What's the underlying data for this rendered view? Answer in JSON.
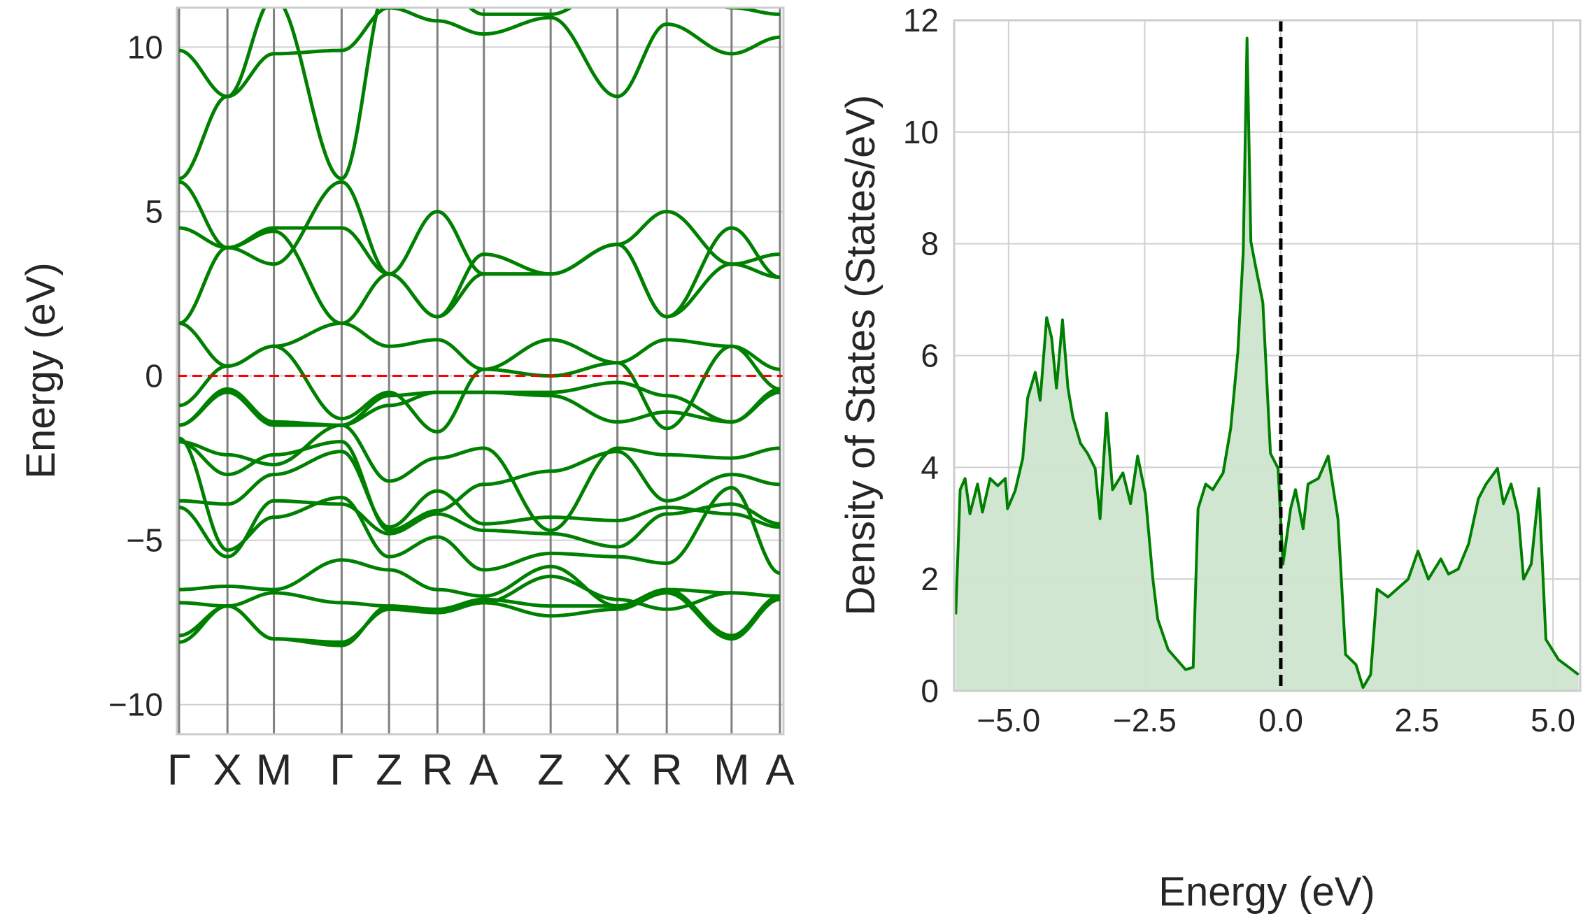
{
  "chart_data": [
    {
      "type": "line",
      "ylabel": "Energy (eV)",
      "xlabel": "",
      "ylim": [
        -10.9,
        11.2
      ],
      "yticks": [
        -10,
        -5,
        0,
        5,
        10
      ],
      "ytick_labels": [
        "−10",
        "−5",
        "0",
        "5",
        "10"
      ],
      "kpoint_labels": [
        "Γ",
        "X",
        "M",
        "Γ",
        "Z",
        "R",
        "A",
        "Z",
        "X",
        "R",
        "M",
        "A"
      ],
      "kpoint_distances": [
        0,
        0.5,
        0.98,
        1.68,
        2.17,
        2.67,
        3.15,
        3.84,
        4.53,
        5.04,
        5.71,
        6.21
      ],
      "fermi_level": 0,
      "fermi_line_color": "#ff0000",
      "line_color": "#008000",
      "grid": true,
      "bands": [
        [
          9.9,
          8.5,
          9.8,
          9.9,
          11.2,
          10.8,
          10.4,
          10.9,
          8.5,
          10.7,
          9.8,
          10.3
        ],
        [
          6.0,
          8.5,
          11.5,
          6.0,
          12.0,
          12.0,
          11.0,
          11.0,
          12.0,
          12.0,
          11.2,
          11.0
        ],
        [
          5.9,
          3.9,
          3.4,
          5.9,
          3.1,
          1.8,
          3.7,
          3.1,
          4.0,
          1.8,
          4.5,
          3.0
        ],
        [
          4.5,
          3.9,
          4.5,
          4.5,
          3.1,
          5.0,
          3.1,
          3.1,
          4.0,
          5.0,
          3.4,
          3.7
        ],
        [
          1.6,
          3.9,
          4.4,
          1.6,
          3.1,
          1.8,
          3.1,
          3.1,
          4.0,
          1.8,
          3.4,
          3.0
        ],
        [
          1.6,
          0.3,
          0.9,
          1.6,
          0.9,
          1.1,
          0.2,
          1.1,
          0.4,
          1.1,
          0.9,
          0.2
        ],
        [
          -0.9,
          0.3,
          0.9,
          -1.3,
          -0.5,
          -1.7,
          0.2,
          0.0,
          0.4,
          -1.6,
          0.9,
          -0.4
        ],
        [
          -1.5,
          -0.4,
          -1.4,
          -1.5,
          -0.6,
          -0.5,
          -0.5,
          -0.5,
          -0.2,
          -0.6,
          -1.4,
          -0.4
        ],
        [
          -1.5,
          -0.5,
          -1.5,
          -1.5,
          -0.9,
          -0.5,
          -0.5,
          -0.6,
          -1.4,
          -1.1,
          -1.4,
          -0.5
        ],
        [
          -2.0,
          -2.4,
          -2.7,
          -1.5,
          -3.2,
          -2.5,
          -2.2,
          -4.7,
          -2.2,
          -2.4,
          -2.5,
          -2.2
        ],
        [
          -2.0,
          -3.0,
          -2.4,
          -2.0,
          -4.7,
          -4.1,
          -3.3,
          -2.9,
          -2.3,
          -3.8,
          -3.0,
          -3.3
        ],
        [
          -3.8,
          -3.9,
          -3.0,
          -2.3,
          -4.6,
          -3.5,
          -4.5,
          -4.3,
          -4.4,
          -4.0,
          -4.2,
          -4.6
        ],
        [
          -4.0,
          -5.5,
          -3.8,
          -3.9,
          -4.8,
          -4.2,
          -4.7,
          -4.8,
          -5.2,
          -4.2,
          -3.9,
          -4.5
        ],
        [
          -1.9,
          -5.3,
          -4.3,
          -3.7,
          -5.5,
          -4.9,
          -5.9,
          -5.4,
          -5.5,
          -5.7,
          -3.4,
          -6.0
        ],
        [
          -6.5,
          -6.4,
          -6.5,
          -5.6,
          -5.9,
          -6.5,
          -6.7,
          -5.8,
          -7.0,
          -6.5,
          -6.6,
          -6.7
        ],
        [
          -6.9,
          -7.0,
          -6.6,
          -6.9,
          -7.0,
          -7.2,
          -6.9,
          -6.1,
          -6.8,
          -7.1,
          -6.6,
          -6.7
        ],
        [
          -7.9,
          -7.0,
          -8.0,
          -8.1,
          -7.1,
          -7.2,
          -6.9,
          -7.3,
          -7.1,
          -6.6,
          -8.0,
          -6.8
        ],
        [
          -8.1,
          -7.0,
          -8.0,
          -8.2,
          -7.0,
          -7.1,
          -6.8,
          -7.0,
          -7.0,
          -6.5,
          -7.9,
          -6.7
        ]
      ]
    },
    {
      "type": "area",
      "xlabel": "Energy (eV)",
      "ylabel": "Density of States (States/eV)",
      "xlim": [
        -6.0,
        5.5
      ],
      "ylim": [
        0,
        12
      ],
      "xticks": [
        -5.0,
        -2.5,
        0.0,
        2.5,
        5.0
      ],
      "xtick_labels": [
        "−5.0",
        "−2.5",
        "0.0",
        "2.5",
        "5.0"
      ],
      "yticks": [
        0,
        2,
        4,
        6,
        8,
        10,
        12
      ],
      "ytick_labels": [
        "0",
        "2",
        "4",
        "6",
        "8",
        "10",
        "12"
      ],
      "fermi_level": 0.0,
      "fermi_line_color": "#000000",
      "line_color": "#008000",
      "fill_color": "#cde5cd",
      "grid": true,
      "x": [
        -5.97,
        -5.89,
        -5.8,
        -5.71,
        -5.57,
        -5.48,
        -5.34,
        -5.2,
        -5.06,
        -5.02,
        -4.88,
        -4.74,
        -4.65,
        -4.51,
        -4.42,
        -4.3,
        -4.21,
        -4.12,
        -4.01,
        -3.91,
        -3.82,
        -3.68,
        -3.55,
        -3.41,
        -3.32,
        -3.2,
        -3.09,
        -2.9,
        -2.76,
        -2.63,
        -2.49,
        -2.35,
        -2.26,
        -2.07,
        -1.75,
        -1.61,
        -1.52,
        -1.38,
        -1.25,
        -1.06,
        -0.92,
        -0.79,
        -0.69,
        -0.62,
        -0.55,
        -0.46,
        -0.33,
        -0.19,
        -0.05,
        0.04,
        0.18,
        0.27,
        0.41,
        0.5,
        0.69,
        0.87,
        1.05,
        1.19,
        1.38,
        1.51,
        1.65,
        1.77,
        1.97,
        2.34,
        2.52,
        2.71,
        2.94,
        3.08,
        3.26,
        3.45,
        3.63,
        3.77,
        3.98,
        4.09,
        4.23,
        4.36,
        4.46,
        4.6,
        4.74,
        4.87,
        5.1,
        5.47
      ],
      "y": [
        1.37,
        3.6,
        3.8,
        3.17,
        3.7,
        3.2,
        3.8,
        3.67,
        3.8,
        3.26,
        3.58,
        4.16,
        5.24,
        5.7,
        5.2,
        6.68,
        6.32,
        5.42,
        6.64,
        5.42,
        4.9,
        4.43,
        4.25,
        3.98,
        3.08,
        4.97,
        3.6,
        3.9,
        3.35,
        4.2,
        3.53,
        2.0,
        1.28,
        0.74,
        0.38,
        0.42,
        3.26,
        3.7,
        3.6,
        3.9,
        4.7,
        6.05,
        7.86,
        11.68,
        8.04,
        7.58,
        6.95,
        4.25,
        3.98,
        2.27,
        3.26,
        3.6,
        2.9,
        3.7,
        3.8,
        4.2,
        3.08,
        0.65,
        0.47,
        0.06,
        0.29,
        1.82,
        1.68,
        2.0,
        2.5,
        2.0,
        2.36,
        2.09,
        2.18,
        2.63,
        3.44,
        3.7,
        3.98,
        3.35,
        3.7,
        3.17,
        2.0,
        2.27,
        3.62,
        0.92,
        0.56,
        0.29
      ]
    }
  ]
}
